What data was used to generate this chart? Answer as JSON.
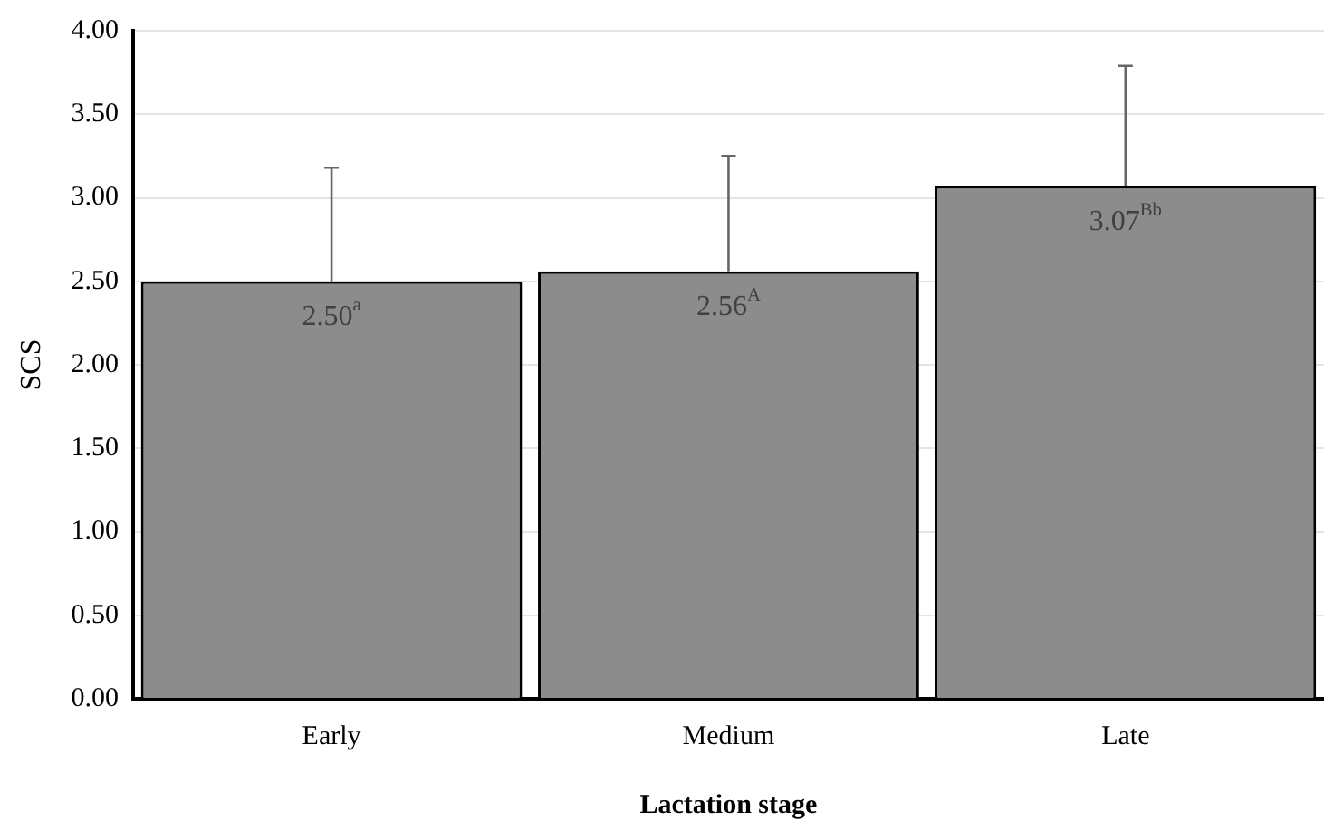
{
  "chart_data": {
    "type": "bar",
    "xlabel": "Lactation stage",
    "ylabel": "SCS",
    "categories": [
      "Early",
      "Medium",
      "Late"
    ],
    "values": [
      2.5,
      2.56,
      3.07
    ],
    "errors": [
      [
        2.5,
        3.18
      ],
      [
        2.56,
        3.25
      ],
      [
        3.07,
        3.79
      ]
    ],
    "value_labels": [
      "2.50$^{a}$",
      "2.56$^{A}$",
      "3.07$^{Bb}$"
    ],
    "color": "#8c8c8c",
    "ylim": [
      0,
      4
    ],
    "yticks": [
      {
        "value": 0,
        "label": "0.00"
      },
      {
        "value": 0.5,
        "label": "0.50"
      },
      {
        "value": 1,
        "label": "1.00"
      },
      {
        "value": 1.5,
        "label": "1.50"
      },
      {
        "value": 2,
        "label": "2.00"
      },
      {
        "value": 2.5,
        "label": "2.50"
      },
      {
        "value": 3,
        "label": "3.00"
      },
      {
        "value": 3.5,
        "label": "3.50"
      },
      {
        "value": 4,
        "label": "4.00"
      }
    ],
    "grid": "y",
    "legend": false
  }
}
